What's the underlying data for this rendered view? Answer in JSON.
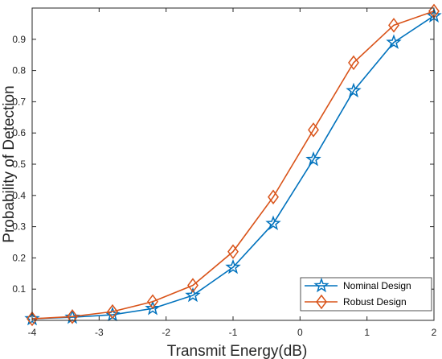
{
  "chart_data": {
    "type": "line",
    "xlabel": "Transmit Energy(dB)",
    "ylabel": "Probability of Detection",
    "xlim": [
      -4,
      2
    ],
    "ylim": [
      0,
      1
    ],
    "x_ticks": [
      -4,
      -3,
      -2,
      -1,
      0,
      1,
      2
    ],
    "y_ticks": [
      0.1,
      0.2,
      0.3,
      0.4,
      0.5,
      0.6,
      0.7,
      0.8,
      0.9
    ],
    "grid": false,
    "legend_position": "bottom-right",
    "x": [
      -4,
      -3.4,
      -2.8,
      -2.2,
      -1.6,
      -1,
      -0.4,
      0.2,
      0.8,
      1.4,
      2
    ],
    "series": [
      {
        "name": "Nominal Design",
        "color": "#0072BD",
        "marker": "star",
        "values": [
          0.005,
          0.01,
          0.018,
          0.038,
          0.08,
          0.17,
          0.31,
          0.515,
          0.735,
          0.89,
          0.975
        ]
      },
      {
        "name": "Robust Design",
        "color": "#D95319",
        "marker": "diamond",
        "values": [
          0.005,
          0.012,
          0.028,
          0.06,
          0.112,
          0.22,
          0.395,
          0.61,
          0.825,
          0.945,
          0.99
        ]
      }
    ]
  }
}
